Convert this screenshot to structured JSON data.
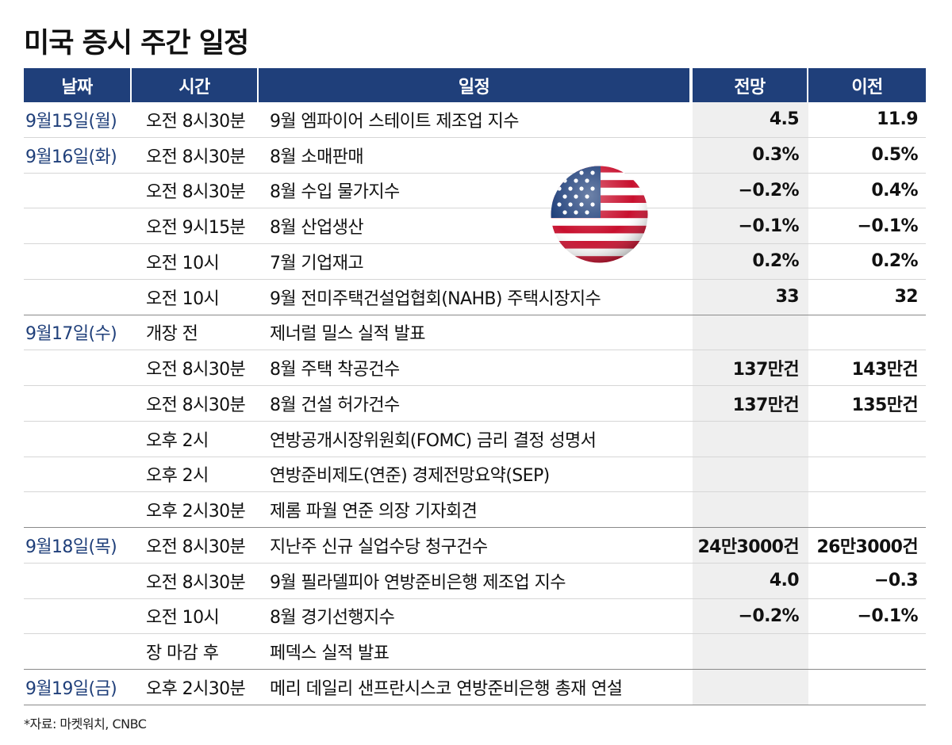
{
  "title": "미국 증시 주간 일정",
  "headers": {
    "date": "날짜",
    "time": "시간",
    "event": "일정",
    "forecast": "전망",
    "previous": "이전"
  },
  "rows": [
    {
      "date": "9월15일(월)",
      "time": "오전 8시30분",
      "event": "9월 엠파이어 스테이트 제조업 지수",
      "forecast": "4.5",
      "previous": "11.9"
    },
    {
      "date": "9월16일(화)",
      "time": "오전 8시30분",
      "event": "8월 소매판매",
      "forecast": "0.3%",
      "previous": "0.5%"
    },
    {
      "date": "",
      "time": "오전 8시30분",
      "event": "8월 수입 물가지수",
      "forecast": "−0.2%",
      "previous": "0.4%"
    },
    {
      "date": "",
      "time": "오전 9시15분",
      "event": "8월 산업생산",
      "forecast": "−0.1%",
      "previous": "−0.1%"
    },
    {
      "date": "",
      "time": "오전 10시",
      "event": "7월 기업재고",
      "forecast": "0.2%",
      "previous": "0.2%"
    },
    {
      "date": "",
      "time": "오전 10시",
      "event": "9월 전미주택건설업협회(NAHB) 주택시장지수",
      "forecast": "33",
      "previous": "32"
    },
    {
      "date": "9월17일(수)",
      "time": "개장 전",
      "event": "제너럴 밀스 실적 발표",
      "forecast": "",
      "previous": ""
    },
    {
      "date": "",
      "time": "오전 8시30분",
      "event": "8월 주택 착공건수",
      "forecast": "137만건",
      "previous": "143만건"
    },
    {
      "date": "",
      "time": "오전 8시30분",
      "event": "8월 건설 허가건수",
      "forecast": "137만건",
      "previous": "135만건"
    },
    {
      "date": "",
      "time": "오후 2시",
      "event": "연방공개시장위원회(FOMC) 금리 결정 성명서",
      "forecast": "",
      "previous": ""
    },
    {
      "date": "",
      "time": "오후 2시",
      "event": "연방준비제도(연준) 경제전망요약(SEP)",
      "forecast": "",
      "previous": ""
    },
    {
      "date": "",
      "time": "오후 2시30분",
      "event": "제롬 파월 연준 의장 기자회견",
      "forecast": "",
      "previous": ""
    },
    {
      "date": "9월18일(목)",
      "time": "오전 8시30분",
      "event": "지난주 신규 실업수당 청구건수",
      "forecast": "24만3000건",
      "previous": "26만3000건"
    },
    {
      "date": "",
      "time": "오전 8시30분",
      "event": "9월 필라델피아 연방준비은행 제조업 지수",
      "forecast": "4.0",
      "previous": "−0.3"
    },
    {
      "date": "",
      "time": "오전 10시",
      "event": "8월 경기선행지수",
      "forecast": "−0.2%",
      "previous": "−0.1%"
    },
    {
      "date": "",
      "time": "장 마감 후",
      "event": "페덱스 실적 발표",
      "forecast": "",
      "previous": ""
    },
    {
      "date": "9월19일(금)",
      "time": "오후 2시30분",
      "event": "메리 데일리 샌프란시스코 연방준비은행 총재 연설",
      "forecast": "",
      "previous": ""
    }
  ],
  "source": "*자료: 마켓워치, CNBC",
  "colors": {
    "header_bg": "#1f3f7a",
    "date_text": "#1f3f7a",
    "forecast_bg": "#efefef"
  },
  "icons": {
    "flag": "us-flag-icon"
  }
}
